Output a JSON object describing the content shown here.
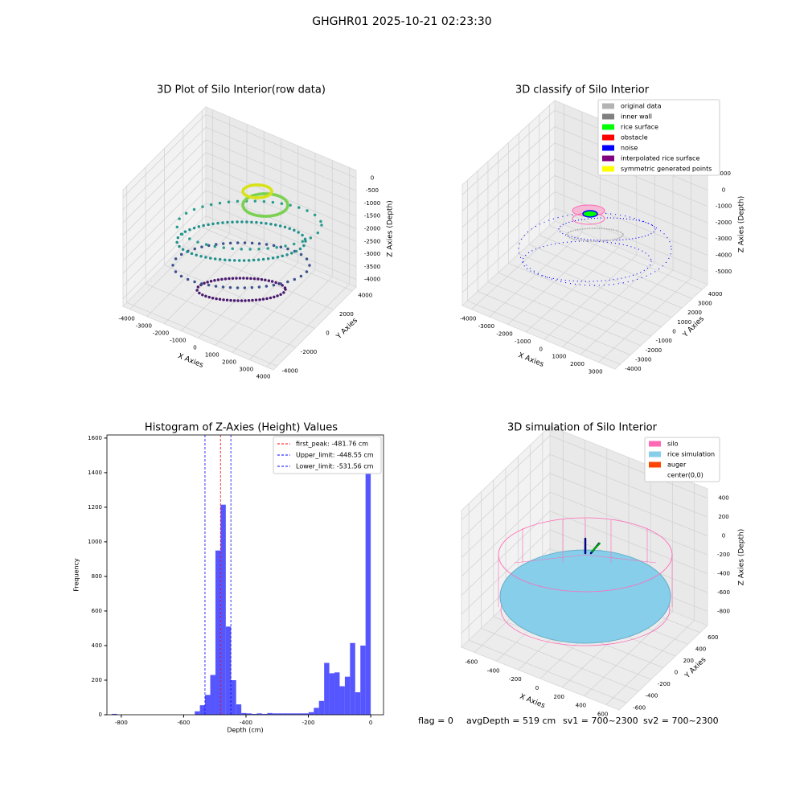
{
  "title": "GHGHR01 2025-10-21 02:23:30",
  "footer": [
    "flag = 0",
    "avgDepth = 519 cm",
    "sv1 = 700~2300",
    "sv2 = 700~2300"
  ],
  "chart_data": [
    {
      "type": "scatter3d",
      "title": "3D Plot of Silo Interior(row data)",
      "xlabel": "X Axies",
      "ylabel": "Y Axies",
      "zlabel": "Z Axies (Depth)",
      "xlim": [
        -4400,
        4400
      ],
      "ylim": [
        -4400,
        4400
      ],
      "zlim": [
        -4300,
        300
      ],
      "xticks": [
        -4000,
        -3000,
        -2000,
        -1000,
        0,
        1000,
        2000,
        3000,
        4000
      ],
      "yticks": [
        -4000,
        -2000,
        0,
        2000,
        4000
      ],
      "zticks": [
        0,
        -500,
        -1000,
        -1500,
        -2000,
        -2500,
        -3000,
        -3500,
        -4000
      ]
    },
    {
      "type": "scatter3d",
      "title": "3D classify of Silo Interior",
      "xlabel": "X Axies",
      "ylabel": "Y Axies",
      "zlabel": "Z Axies (Depth)",
      "xlim": [
        -4500,
        3900
      ],
      "ylim": [
        -4500,
        4500
      ],
      "zlim": [
        -5800,
        1600
      ],
      "xticks": [
        -4000,
        -3000,
        -2000,
        -1000,
        0,
        1000,
        2000,
        3000
      ],
      "yticks": [
        -4000,
        -3000,
        -2000,
        -1000,
        0,
        1000,
        2000,
        3000,
        4000
      ],
      "zticks": [
        1000,
        0,
        -1000,
        -2000,
        -3000,
        -4000,
        -5000
      ],
      "legend": [
        {
          "name": "original data",
          "color": "#b3b3b3"
        },
        {
          "name": "inner wall",
          "color": "#808080"
        },
        {
          "name": "rice surface",
          "color": "#00ff00"
        },
        {
          "name": "obstacle",
          "color": "#ff0000"
        },
        {
          "name": "noise",
          "color": "#0000ff"
        },
        {
          "name": "interpolated rice surface",
          "color": "#800080"
        },
        {
          "name": "symmetric generated points",
          "color": "#ffff00"
        }
      ]
    },
    {
      "type": "histogram",
      "title": "Histogram of Z-Axies (Height) Values",
      "xlabel": "Depth (cm)",
      "ylabel": "Frequency",
      "color": "#4d4dff",
      "bins": [
        -830,
        -813.4,
        -796.8,
        -780.2,
        -763.6,
        -747,
        -730.4,
        -713.8,
        -697.2,
        -680.6,
        -664,
        -647.4,
        -630.8,
        -614.2,
        -597.6,
        -581,
        -564.4,
        -547.8,
        -531.2,
        -514.6,
        -498,
        -481.4,
        -464.8,
        -448.2,
        -431.6,
        -415,
        -398.4,
        -381.8,
        -365.2,
        -348.6,
        -332,
        -315.4,
        -298.8,
        -282.2,
        -265.6,
        -249,
        -232.4,
        -215.8,
        -199.2,
        -182.6,
        -166,
        -149.4,
        -132.8,
        -116.2,
        -99.6,
        -83,
        -66.4,
        -49.8,
        -33.2,
        -16.6,
        0
      ],
      "values": [
        5,
        0,
        0,
        0,
        0,
        0,
        0,
        0,
        0,
        0,
        0,
        0,
        0,
        0,
        0,
        0,
        20,
        55,
        115,
        230,
        950,
        1215,
        510,
        200,
        60,
        10,
        8,
        5,
        8,
        5,
        10,
        8,
        8,
        8,
        8,
        8,
        8,
        8,
        15,
        40,
        80,
        300,
        240,
        245,
        165,
        220,
        415,
        130,
        400,
        1540
      ],
      "xlim": [
        -846,
        41
      ],
      "ylim": [
        0,
        1618
      ],
      "xticks": [
        -800,
        -600,
        -400,
        -200,
        0
      ],
      "yticks": [
        0,
        200,
        400,
        600,
        800,
        1000,
        1200,
        1400,
        1600
      ],
      "vlines": [
        {
          "value": -481.76,
          "label": "first_peak: -481.76 cm",
          "color": "#ff0000"
        },
        {
          "value": -448.55,
          "label": "Upper_limit: -448.55 cm",
          "color": "#0000ff"
        },
        {
          "value": -531.56,
          "label": "Lower_limit: -531.56 cm",
          "color": "#0000ff"
        }
      ]
    },
    {
      "type": "surface3d",
      "title": "3D simulation of Silo Interior",
      "xlabel": "X Axies",
      "ylabel": "Y Axies",
      "zlabel": "Z Axies (Depth)",
      "xlim": [
        -720,
        720
      ],
      "ylim": [
        -720,
        720
      ],
      "zlim": [
        -950,
        500
      ],
      "xticks": [
        -600,
        -400,
        -200,
        0,
        200,
        400,
        600
      ],
      "yticks": [
        -600,
        -400,
        -200,
        0,
        200,
        400,
        600
      ],
      "zticks": [
        400,
        200,
        0,
        -200,
        -400,
        -600,
        -800
      ],
      "legend": [
        {
          "name": "silo",
          "color": "#ff69b4"
        },
        {
          "name": "rice simulation",
          "color": "#87ceeb"
        },
        {
          "name": "auger",
          "color": "#ff4500"
        },
        {
          "name": "center(0,0)",
          "color": "#ffffff"
        }
      ]
    }
  ]
}
